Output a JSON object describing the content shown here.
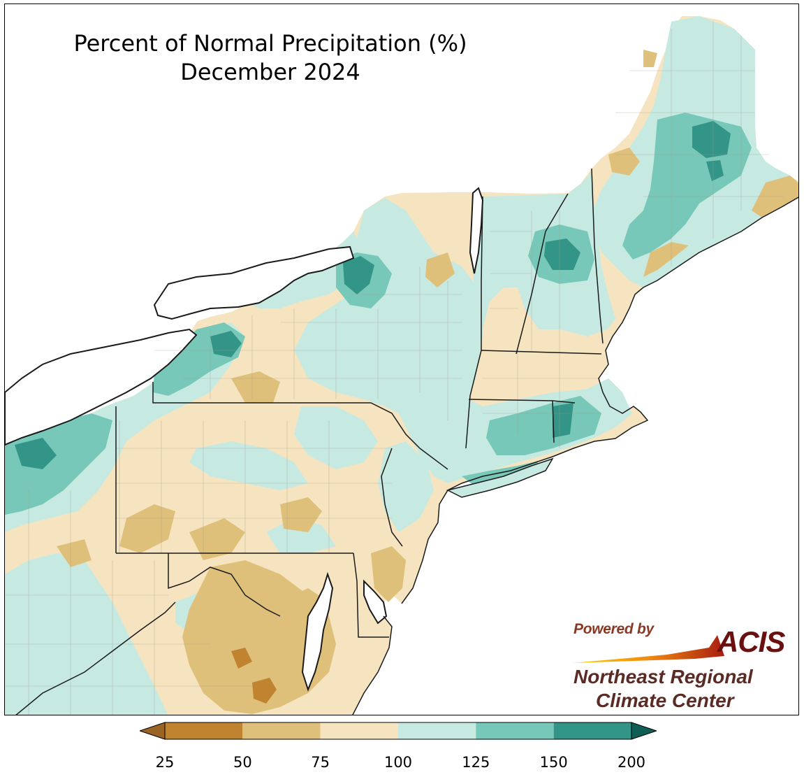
{
  "map": {
    "title": "Percent of Normal Precipitation (%)",
    "subtitle": "December 2024",
    "region": "Northeast United States",
    "colors": {
      "water": "#ffffff",
      "border": "#1a1a1a",
      "county_lines": "#a89c88"
    }
  },
  "legend": {
    "bins": [
      {
        "from": 25,
        "to": 50,
        "color": "#c08330"
      },
      {
        "from": 50,
        "to": 75,
        "color": "#dfc07a"
      },
      {
        "from": 75,
        "to": 100,
        "color": "#f5e4bf"
      },
      {
        "from": 100,
        "to": 125,
        "color": "#c6eae2"
      },
      {
        "from": 125,
        "to": 150,
        "color": "#77c8b8"
      },
      {
        "from": 150,
        "to": 200,
        "color": "#339488"
      }
    ],
    "under_color": "#9a6424",
    "over_color": "#0f5f55",
    "ticks": [
      "25",
      "50",
      "75",
      "100",
      "125",
      "150",
      "200"
    ]
  },
  "logo": {
    "powered_by": "Powered by",
    "acis": "ACIS",
    "org_line1": "Northeast Regional",
    "org_line2": "Climate Center"
  }
}
